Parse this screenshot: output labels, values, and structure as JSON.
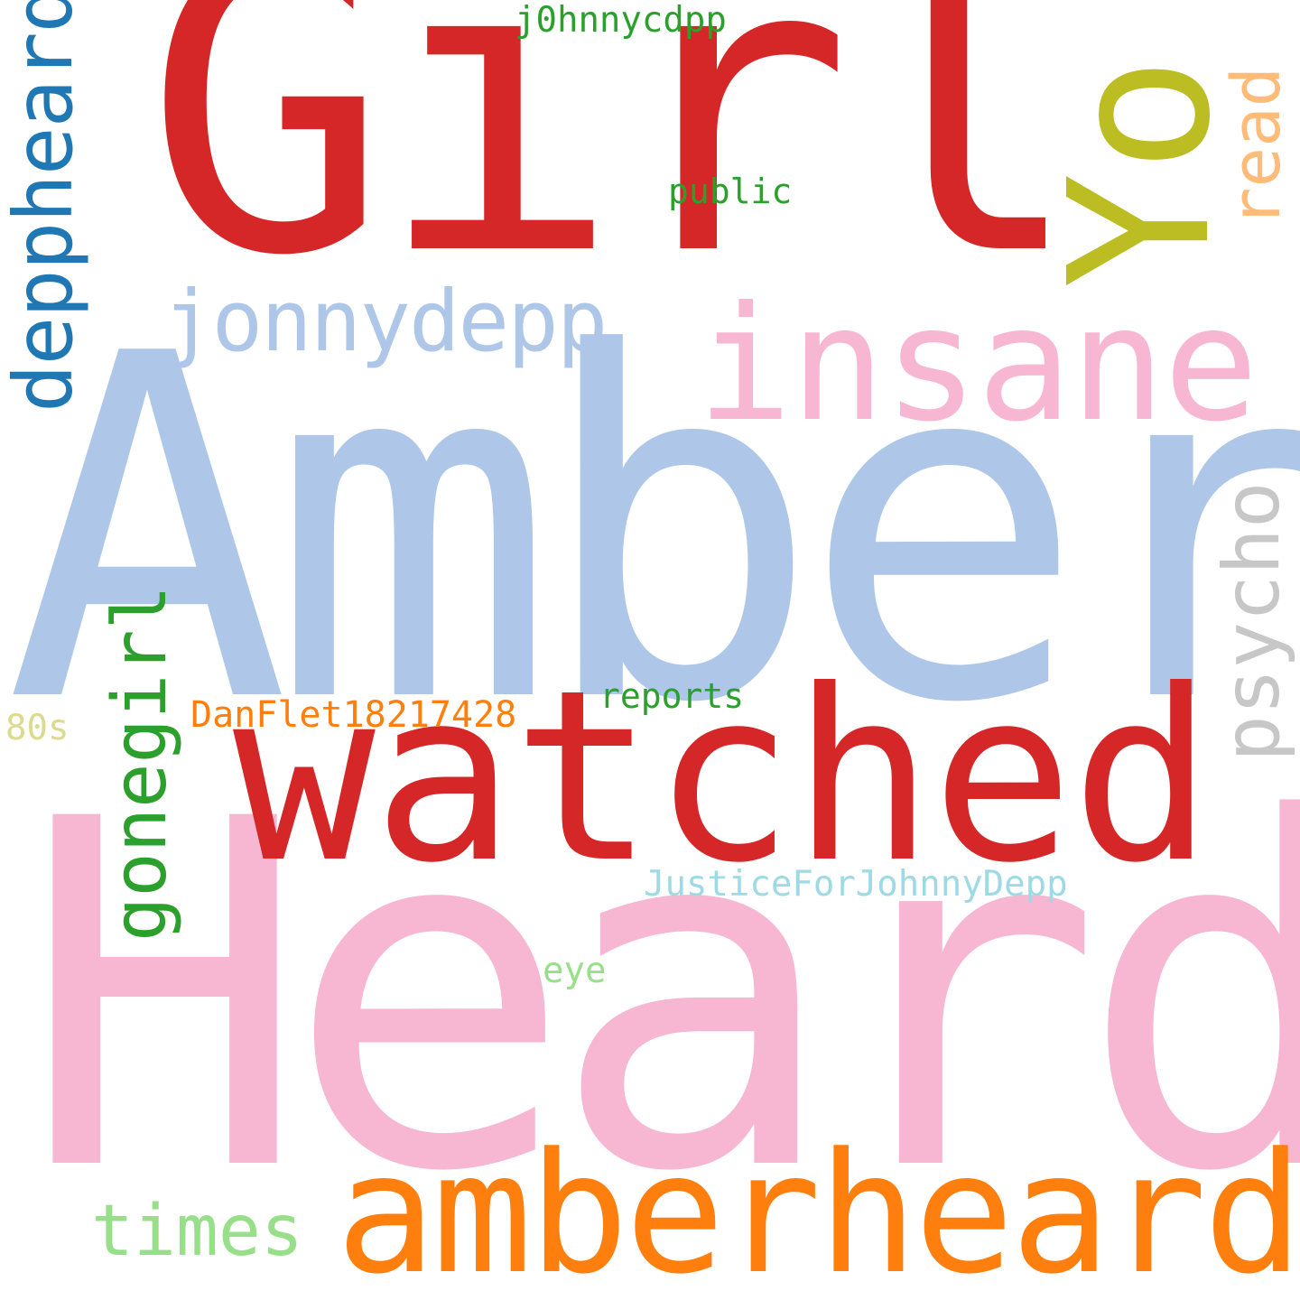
{
  "word_cloud": {
    "background": "#ffffff",
    "words": [
      {
        "id": "amber",
        "text": "Amber",
        "color": "#aec7e8",
        "orientation": "horizontal"
      },
      {
        "id": "heard",
        "text": "Heard",
        "color": "#f7b6d2",
        "orientation": "horizontal"
      },
      {
        "id": "girl",
        "text": "Girl",
        "color": "#d62728",
        "orientation": "horizontal"
      },
      {
        "id": "watched",
        "text": "watched",
        "color": "#d62728",
        "orientation": "horizontal"
      },
      {
        "id": "amberheard",
        "text": "amberheard",
        "color": "#ff7f0e",
        "orientation": "horizontal"
      },
      {
        "id": "insane",
        "text": "insane",
        "color": "#f7b6d2",
        "orientation": "horizontal"
      },
      {
        "id": "yo",
        "text": "Yo",
        "color": "#bcbd22",
        "orientation": "vertical"
      },
      {
        "id": "deppheard",
        "text": "deppheard",
        "color": "#1f77b4",
        "orientation": "vertical"
      },
      {
        "id": "jonnydepp",
        "text": "jonnydepp",
        "color": "#aec7e8",
        "orientation": "horizontal"
      },
      {
        "id": "psycho",
        "text": "psycho",
        "color": "#c7c7c7",
        "orientation": "vertical"
      },
      {
        "id": "gonegirl",
        "text": "gonegirl",
        "color": "#2ca02c",
        "orientation": "vertical"
      },
      {
        "id": "read",
        "text": "read",
        "color": "#ffbb78",
        "orientation": "vertical"
      },
      {
        "id": "times",
        "text": "times",
        "color": "#98df8a",
        "orientation": "horizontal"
      },
      {
        "id": "j0hnny",
        "text": "j0hnnycdpp",
        "color": "#2ca02c",
        "orientation": "horizontal"
      },
      {
        "id": "public",
        "text": "public",
        "color": "#2ca02c",
        "orientation": "horizontal"
      },
      {
        "id": "reports",
        "text": "reports",
        "color": "#2ca02c",
        "orientation": "horizontal"
      },
      {
        "id": "danflet",
        "text": "DanFlet18217428",
        "color": "#ff7f0e",
        "orientation": "horizontal"
      },
      {
        "id": "eighties",
        "text": "80s",
        "color": "#dbdb8d",
        "orientation": "horizontal"
      },
      {
        "id": "justice",
        "text": "JusticeForJohnnyDepp",
        "color": "#9edae5",
        "orientation": "horizontal"
      },
      {
        "id": "eye",
        "text": "eye",
        "color": "#98df8a",
        "orientation": "horizontal"
      }
    ]
  }
}
